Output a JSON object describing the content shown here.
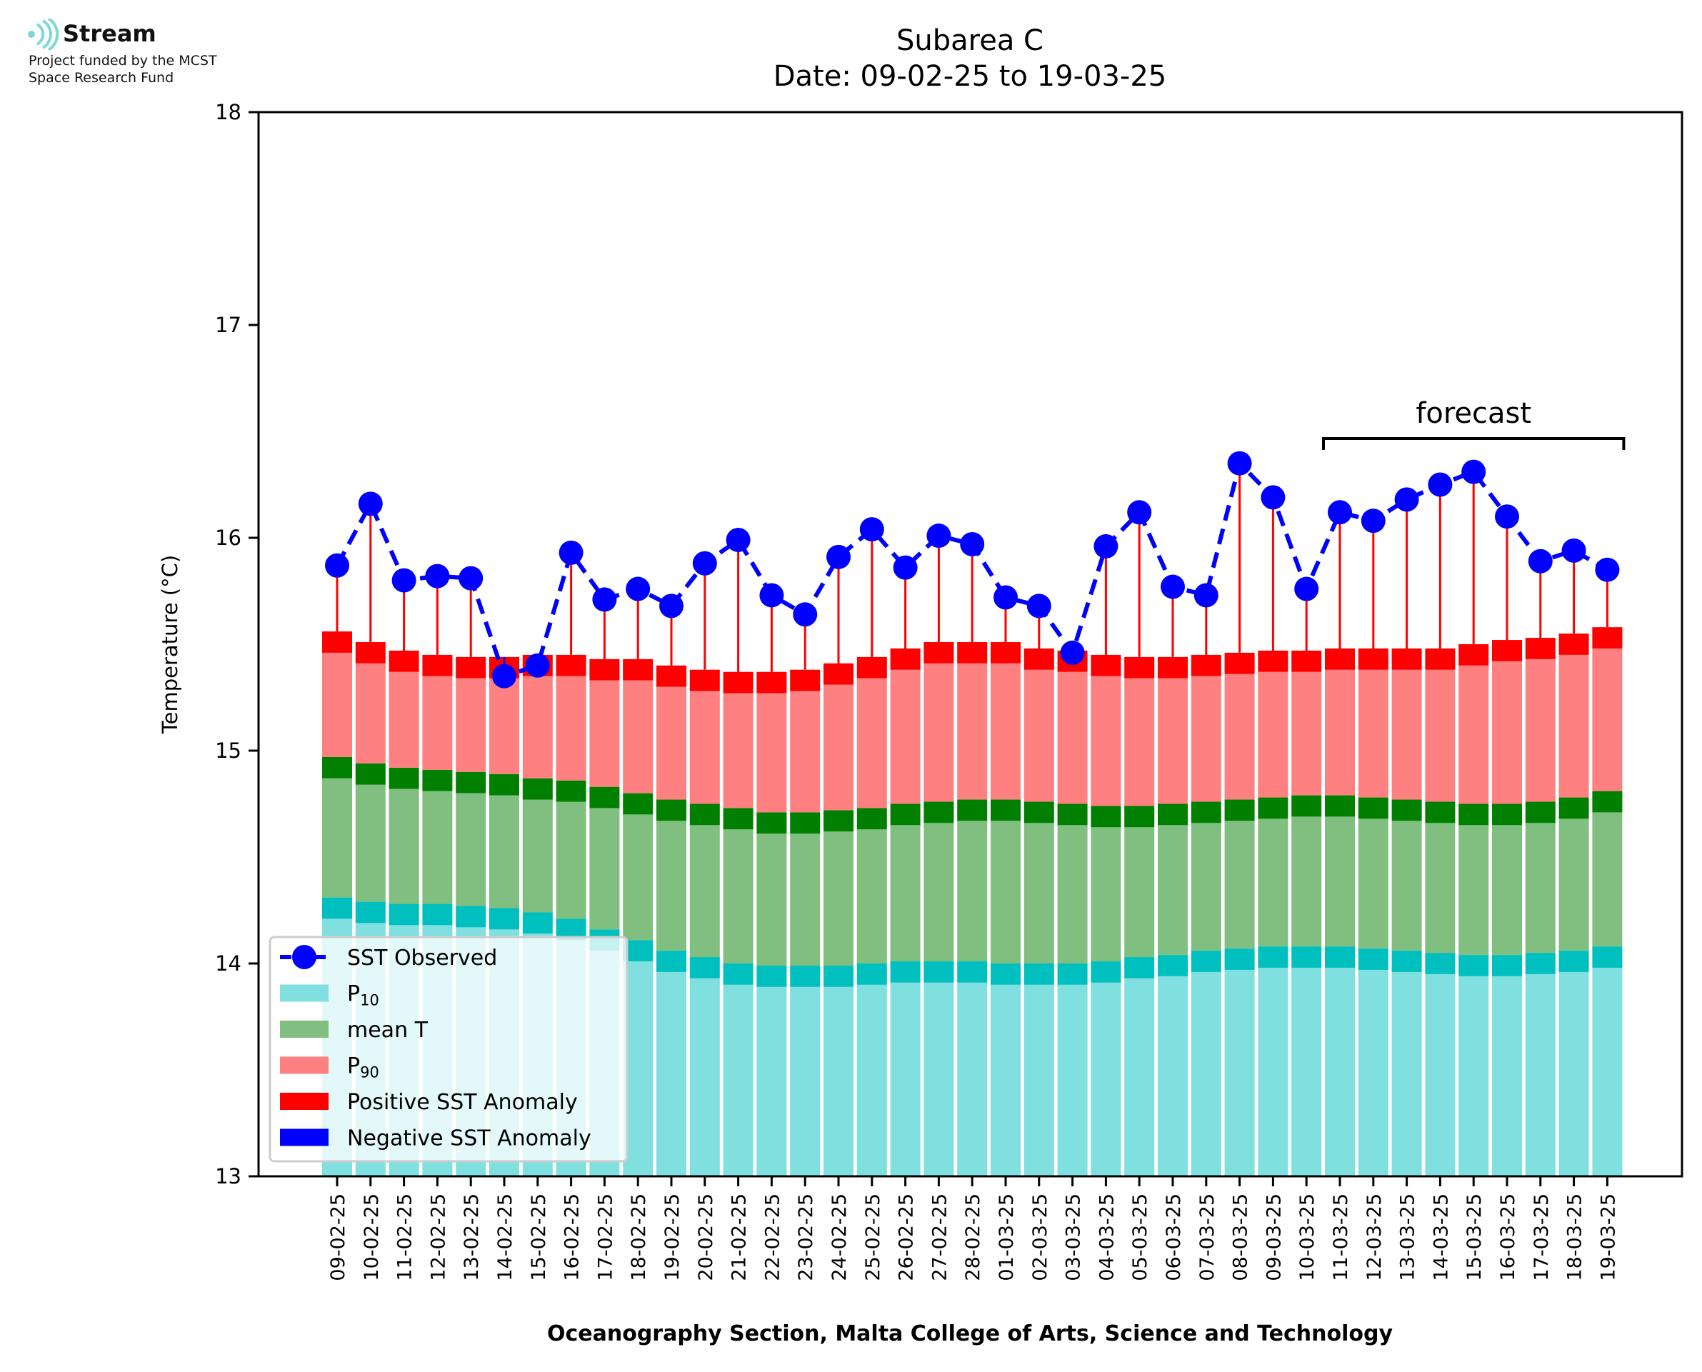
{
  "logo": {
    "name": "Stream",
    "line1": "Project funded by the MCST",
    "line2": "Space Research Fund",
    "color": "#7fd8d8"
  },
  "chart_data": {
    "type": "bar",
    "title": "Subarea C",
    "subtitle": "Date: 09-02-25 to 19-03-25",
    "xlabel": "Oceanography Section, Malta College of Arts, Science and Technology",
    "ylabel": "Temperature (°C)",
    "ylim": [
      13,
      18
    ],
    "yticks": [
      "13",
      "14",
      "15",
      "16",
      "17",
      "18"
    ],
    "grid": false,
    "legend_position": "lower-left",
    "annotation": "forecast",
    "forecast_range": [
      "11-03-25",
      "19-03-25"
    ],
    "categories": [
      "09-02-25",
      "10-02-25",
      "11-02-25",
      "12-02-25",
      "13-02-25",
      "14-02-25",
      "15-02-25",
      "16-02-25",
      "17-02-25",
      "18-02-25",
      "19-02-25",
      "20-02-25",
      "21-02-25",
      "22-02-25",
      "23-02-25",
      "24-02-25",
      "25-02-25",
      "26-02-25",
      "27-02-25",
      "28-02-25",
      "01-03-25",
      "02-03-25",
      "03-03-25",
      "04-03-25",
      "05-03-25",
      "06-03-25",
      "07-03-25",
      "08-03-25",
      "09-03-25",
      "10-03-25",
      "11-03-25",
      "12-03-25",
      "13-03-25",
      "14-03-25",
      "15-03-25",
      "16-03-25",
      "17-03-25",
      "18-03-25",
      "19-03-25"
    ],
    "series": [
      {
        "name": "SST Observed",
        "color": "#0000ff",
        "values": [
          15.87,
          16.16,
          15.8,
          15.82,
          15.81,
          15.35,
          15.4,
          15.93,
          15.71,
          15.76,
          15.68,
          15.88,
          15.99,
          15.73,
          15.64,
          15.91,
          16.04,
          15.86,
          16.01,
          15.97,
          15.72,
          15.68,
          15.46,
          15.96,
          16.12,
          15.77,
          15.73,
          16.35,
          16.19,
          15.76,
          16.12,
          16.08,
          16.18,
          16.25,
          16.31,
          16.1,
          15.89,
          15.94,
          15.85
        ]
      },
      {
        "name": "P10",
        "color": "#80dfdf",
        "band_color": "#00bfbf",
        "values": [
          14.31,
          14.29,
          14.28,
          14.28,
          14.27,
          14.26,
          14.24,
          14.21,
          14.16,
          14.11,
          14.06,
          14.03,
          14.0,
          13.99,
          13.99,
          13.99,
          14.0,
          14.01,
          14.01,
          14.01,
          14.0,
          14.0,
          14.0,
          14.01,
          14.03,
          14.04,
          14.06,
          14.07,
          14.08,
          14.08,
          14.08,
          14.07,
          14.06,
          14.05,
          14.04,
          14.04,
          14.05,
          14.06,
          14.08
        ]
      },
      {
        "name": "mean T",
        "color": "#80bf80",
        "band_color": "#007f00",
        "values": [
          14.97,
          14.94,
          14.92,
          14.91,
          14.9,
          14.89,
          14.87,
          14.86,
          14.83,
          14.8,
          14.77,
          14.75,
          14.73,
          14.71,
          14.71,
          14.72,
          14.73,
          14.75,
          14.76,
          14.77,
          14.77,
          14.76,
          14.75,
          14.74,
          14.74,
          14.75,
          14.76,
          14.77,
          14.78,
          14.79,
          14.79,
          14.78,
          14.77,
          14.76,
          14.75,
          14.75,
          14.76,
          14.78,
          14.81
        ]
      },
      {
        "name": "P90",
        "color": "#ff8080",
        "band_color": "#ff0000",
        "values": [
          15.56,
          15.51,
          15.47,
          15.45,
          15.44,
          15.44,
          15.45,
          15.45,
          15.43,
          15.43,
          15.4,
          15.38,
          15.37,
          15.37,
          15.38,
          15.41,
          15.44,
          15.48,
          15.51,
          15.51,
          15.51,
          15.48,
          15.47,
          15.45,
          15.44,
          15.44,
          15.45,
          15.46,
          15.47,
          15.47,
          15.48,
          15.48,
          15.48,
          15.48,
          15.5,
          15.52,
          15.53,
          15.55,
          15.58
        ]
      }
    ],
    "legend": [
      {
        "label": "SST Observed",
        "kind": "line",
        "color": "#0000ff"
      },
      {
        "label": "P",
        "sub": "10",
        "kind": "patch",
        "color": "#80dfdf"
      },
      {
        "label": "mean T",
        "kind": "patch",
        "color": "#80bf80"
      },
      {
        "label": "P",
        "sub": "90",
        "kind": "patch",
        "color": "#ff8080"
      },
      {
        "label": "Positive SST Anomaly",
        "kind": "patch",
        "color": "#ff0000"
      },
      {
        "label": "Negative SST Anomaly",
        "kind": "patch",
        "color": "#0000ff"
      }
    ]
  }
}
